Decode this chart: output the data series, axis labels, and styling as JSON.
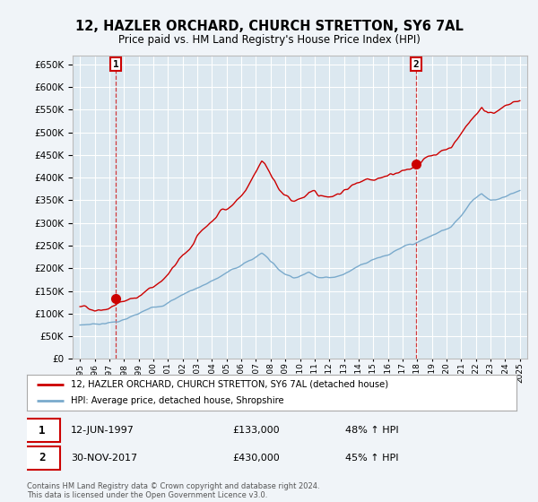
{
  "title": "12, HAZLER ORCHARD, CHURCH STRETTON, SY6 7AL",
  "subtitle": "Price paid vs. HM Land Registry's House Price Index (HPI)",
  "legend_line1": "12, HAZLER ORCHARD, CHURCH STRETTON, SY6 7AL (detached house)",
  "legend_line2": "HPI: Average price, detached house, Shropshire",
  "transaction1_date": "12-JUN-1997",
  "transaction1_price": "£133,000",
  "transaction1_hpi": "48% ↑ HPI",
  "transaction2_date": "30-NOV-2017",
  "transaction2_price": "£430,000",
  "transaction2_hpi": "45% ↑ HPI",
  "footer": "Contains HM Land Registry data © Crown copyright and database right 2024.\nThis data is licensed under the Open Government Licence v3.0.",
  "red_color": "#cc0000",
  "blue_color": "#7aaacc",
  "bg_color": "#f0f4f8",
  "plot_bg": "#dce8f0",
  "grid_color": "#ffffff",
  "ylim_min": 0,
  "ylim_max": 670000,
  "ytick_step": 50000,
  "marker1_year": 1997.45,
  "marker1_price": 133000,
  "marker2_year": 2017.92,
  "marker2_price": 430000,
  "red_keypoints": [
    [
      1995.0,
      115000
    ],
    [
      1995.5,
      112000
    ],
    [
      1996.0,
      112000
    ],
    [
      1996.5,
      118000
    ],
    [
      1997.0,
      125000
    ],
    [
      1997.45,
      133000
    ],
    [
      1997.8,
      136000
    ],
    [
      1998.5,
      145000
    ],
    [
      1999.0,
      152000
    ],
    [
      1999.5,
      162000
    ],
    [
      2000.0,
      172000
    ],
    [
      2000.5,
      185000
    ],
    [
      2001.0,
      200000
    ],
    [
      2001.5,
      218000
    ],
    [
      2002.0,
      235000
    ],
    [
      2002.5,
      252000
    ],
    [
      2003.0,
      272000
    ],
    [
      2003.5,
      290000
    ],
    [
      2004.0,
      305000
    ],
    [
      2004.3,
      315000
    ],
    [
      2004.6,
      328000
    ],
    [
      2005.0,
      335000
    ],
    [
      2005.3,
      342000
    ],
    [
      2005.6,
      352000
    ],
    [
      2006.0,
      365000
    ],
    [
      2006.3,
      375000
    ],
    [
      2006.6,
      390000
    ],
    [
      2007.0,
      408000
    ],
    [
      2007.2,
      420000
    ],
    [
      2007.4,
      430000
    ],
    [
      2007.6,
      425000
    ],
    [
      2007.8,
      415000
    ],
    [
      2008.0,
      405000
    ],
    [
      2008.3,
      390000
    ],
    [
      2008.6,
      370000
    ],
    [
      2009.0,
      355000
    ],
    [
      2009.3,
      345000
    ],
    [
      2009.6,
      340000
    ],
    [
      2010.0,
      345000
    ],
    [
      2010.3,
      350000
    ],
    [
      2010.6,
      360000
    ],
    [
      2011.0,
      355000
    ],
    [
      2011.3,
      345000
    ],
    [
      2011.6,
      348000
    ],
    [
      2012.0,
      350000
    ],
    [
      2012.3,
      355000
    ],
    [
      2012.6,
      360000
    ],
    [
      2013.0,
      365000
    ],
    [
      2013.3,
      372000
    ],
    [
      2013.6,
      378000
    ],
    [
      2014.0,
      385000
    ],
    [
      2014.3,
      392000
    ],
    [
      2014.6,
      398000
    ],
    [
      2015.0,
      402000
    ],
    [
      2015.3,
      408000
    ],
    [
      2015.6,
      412000
    ],
    [
      2016.0,
      415000
    ],
    [
      2016.3,
      418000
    ],
    [
      2016.6,
      422000
    ],
    [
      2017.0,
      425000
    ],
    [
      2017.4,
      428000
    ],
    [
      2017.92,
      430000
    ],
    [
      2018.2,
      435000
    ],
    [
      2018.5,
      442000
    ],
    [
      2018.8,
      448000
    ],
    [
      2019.0,
      452000
    ],
    [
      2019.3,
      458000
    ],
    [
      2019.6,
      462000
    ],
    [
      2020.0,
      468000
    ],
    [
      2020.3,
      475000
    ],
    [
      2020.6,
      488000
    ],
    [
      2021.0,
      505000
    ],
    [
      2021.3,
      520000
    ],
    [
      2021.6,
      535000
    ],
    [
      2022.0,
      548000
    ],
    [
      2022.2,
      558000
    ],
    [
      2022.4,
      568000
    ],
    [
      2022.6,
      560000
    ],
    [
      2022.8,
      555000
    ],
    [
      2023.0,
      558000
    ],
    [
      2023.3,
      562000
    ],
    [
      2023.6,
      565000
    ],
    [
      2024.0,
      568000
    ],
    [
      2024.3,
      572000
    ],
    [
      2024.6,
      575000
    ],
    [
      2025.0,
      578000
    ]
  ],
  "blue_keypoints": [
    [
      1995.0,
      75000
    ],
    [
      1995.5,
      77000
    ],
    [
      1996.0,
      79000
    ],
    [
      1996.5,
      81000
    ],
    [
      1997.0,
      83000
    ],
    [
      1997.5,
      86000
    ],
    [
      1998.0,
      90000
    ],
    [
      1998.5,
      95000
    ],
    [
      1999.0,
      100000
    ],
    [
      1999.5,
      107000
    ],
    [
      2000.0,
      113000
    ],
    [
      2000.5,
      120000
    ],
    [
      2001.0,
      128000
    ],
    [
      2001.5,
      137000
    ],
    [
      2002.0,
      146000
    ],
    [
      2002.5,
      155000
    ],
    [
      2003.0,
      163000
    ],
    [
      2003.5,
      170000
    ],
    [
      2004.0,
      177000
    ],
    [
      2004.3,
      182000
    ],
    [
      2004.6,
      188000
    ],
    [
      2005.0,
      195000
    ],
    [
      2005.3,
      200000
    ],
    [
      2005.6,
      206000
    ],
    [
      2006.0,
      213000
    ],
    [
      2006.3,
      218000
    ],
    [
      2006.6,
      223000
    ],
    [
      2007.0,
      230000
    ],
    [
      2007.2,
      236000
    ],
    [
      2007.4,
      240000
    ],
    [
      2007.6,
      237000
    ],
    [
      2007.8,
      232000
    ],
    [
      2008.0,
      225000
    ],
    [
      2008.3,
      215000
    ],
    [
      2008.6,
      205000
    ],
    [
      2009.0,
      198000
    ],
    [
      2009.3,
      195000
    ],
    [
      2009.6,
      193000
    ],
    [
      2010.0,
      196000
    ],
    [
      2010.3,
      200000
    ],
    [
      2010.6,
      205000
    ],
    [
      2011.0,
      202000
    ],
    [
      2011.3,
      198000
    ],
    [
      2011.6,
      197000
    ],
    [
      2012.0,
      198000
    ],
    [
      2012.3,
      200000
    ],
    [
      2012.6,
      203000
    ],
    [
      2013.0,
      207000
    ],
    [
      2013.3,
      212000
    ],
    [
      2013.6,
      218000
    ],
    [
      2014.0,
      226000
    ],
    [
      2014.3,
      233000
    ],
    [
      2014.6,
      238000
    ],
    [
      2015.0,
      244000
    ],
    [
      2015.3,
      249000
    ],
    [
      2015.6,
      253000
    ],
    [
      2016.0,
      258000
    ],
    [
      2016.3,
      262000
    ],
    [
      2016.6,
      266000
    ],
    [
      2017.0,
      270000
    ],
    [
      2017.4,
      273000
    ],
    [
      2017.92,
      276000
    ],
    [
      2018.2,
      280000
    ],
    [
      2018.5,
      284000
    ],
    [
      2018.8,
      288000
    ],
    [
      2019.0,
      292000
    ],
    [
      2019.3,
      296000
    ],
    [
      2019.6,
      300000
    ],
    [
      2020.0,
      305000
    ],
    [
      2020.3,
      312000
    ],
    [
      2020.6,
      325000
    ],
    [
      2021.0,
      340000
    ],
    [
      2021.3,
      355000
    ],
    [
      2021.6,
      368000
    ],
    [
      2022.0,
      378000
    ],
    [
      2022.2,
      385000
    ],
    [
      2022.4,
      390000
    ],
    [
      2022.6,
      385000
    ],
    [
      2022.8,
      380000
    ],
    [
      2023.0,
      378000
    ],
    [
      2023.3,
      378000
    ],
    [
      2023.6,
      380000
    ],
    [
      2024.0,
      385000
    ],
    [
      2024.3,
      390000
    ],
    [
      2024.6,
      395000
    ],
    [
      2025.0,
      400000
    ]
  ]
}
